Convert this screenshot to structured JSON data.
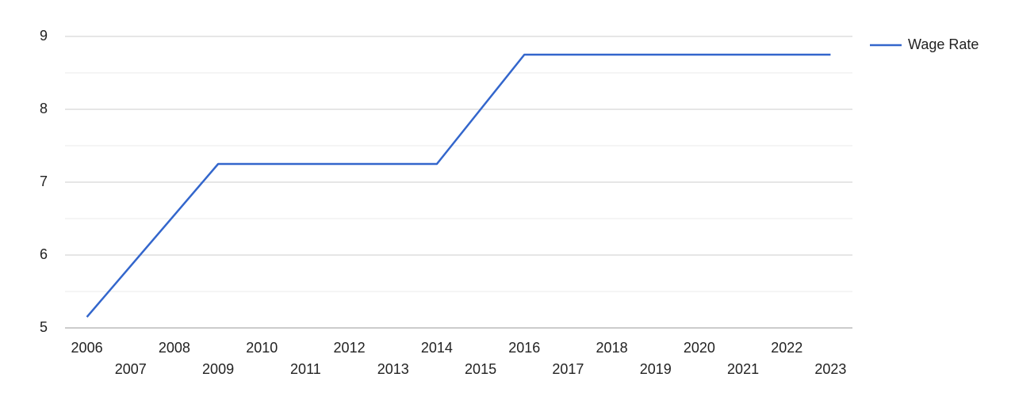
{
  "chart_data": {
    "type": "line",
    "categories": [
      "2006",
      "2007",
      "2008",
      "2009",
      "2010",
      "2011",
      "2012",
      "2013",
      "2014",
      "2015",
      "2016",
      "2017",
      "2018",
      "2019",
      "2020",
      "2021",
      "2022",
      "2023"
    ],
    "series": [
      {
        "name": "Wage Rate",
        "color": "#3366cc",
        "values": [
          5.15,
          5.85,
          6.55,
          7.25,
          7.25,
          7.25,
          7.25,
          7.25,
          7.25,
          8.0,
          8.75,
          8.75,
          8.75,
          8.75,
          8.75,
          8.75,
          8.75,
          8.75
        ]
      }
    ],
    "ylim": [
      5,
      9
    ],
    "yticks": [
      5,
      6,
      7,
      8,
      9
    ],
    "grid": true,
    "minor_grid": true,
    "legend": "right"
  }
}
